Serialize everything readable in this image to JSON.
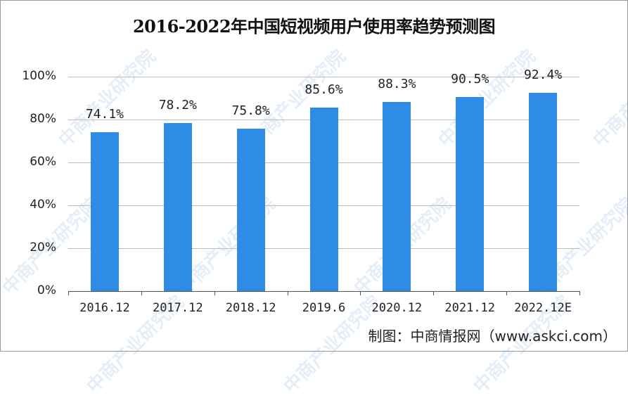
{
  "title": "2016-2022年中国短视频用户使用率趋势预测图",
  "source": "制图：中商情报网（www.askci.com）",
  "watermark": "中商产业研究院",
  "colors": {
    "bar": "#2e8be6",
    "grid": "#bdbdbd",
    "axis": "#555555",
    "text": "#222222"
  },
  "chart_data": {
    "type": "bar",
    "title": "2016-2022年中国短视频用户使用率趋势预测图",
    "xlabel": "",
    "ylabel": "",
    "categories": [
      "2016.12",
      "2017.12",
      "2018.12",
      "2019.6",
      "2020.12",
      "2021.12",
      "2022.12E"
    ],
    "values": [
      74.1,
      78.2,
      75.8,
      85.6,
      88.3,
      90.5,
      92.4
    ],
    "value_labels": [
      "74.1%",
      "78.2%",
      "75.8%",
      "85.6%",
      "88.3%",
      "90.5%",
      "92.4%"
    ],
    "ylim": [
      0,
      100
    ],
    "yticks": [
      "0%",
      "20%",
      "40%",
      "60%",
      "80%",
      "100%"
    ],
    "grid": true,
    "legend": null,
    "unit": "%"
  }
}
